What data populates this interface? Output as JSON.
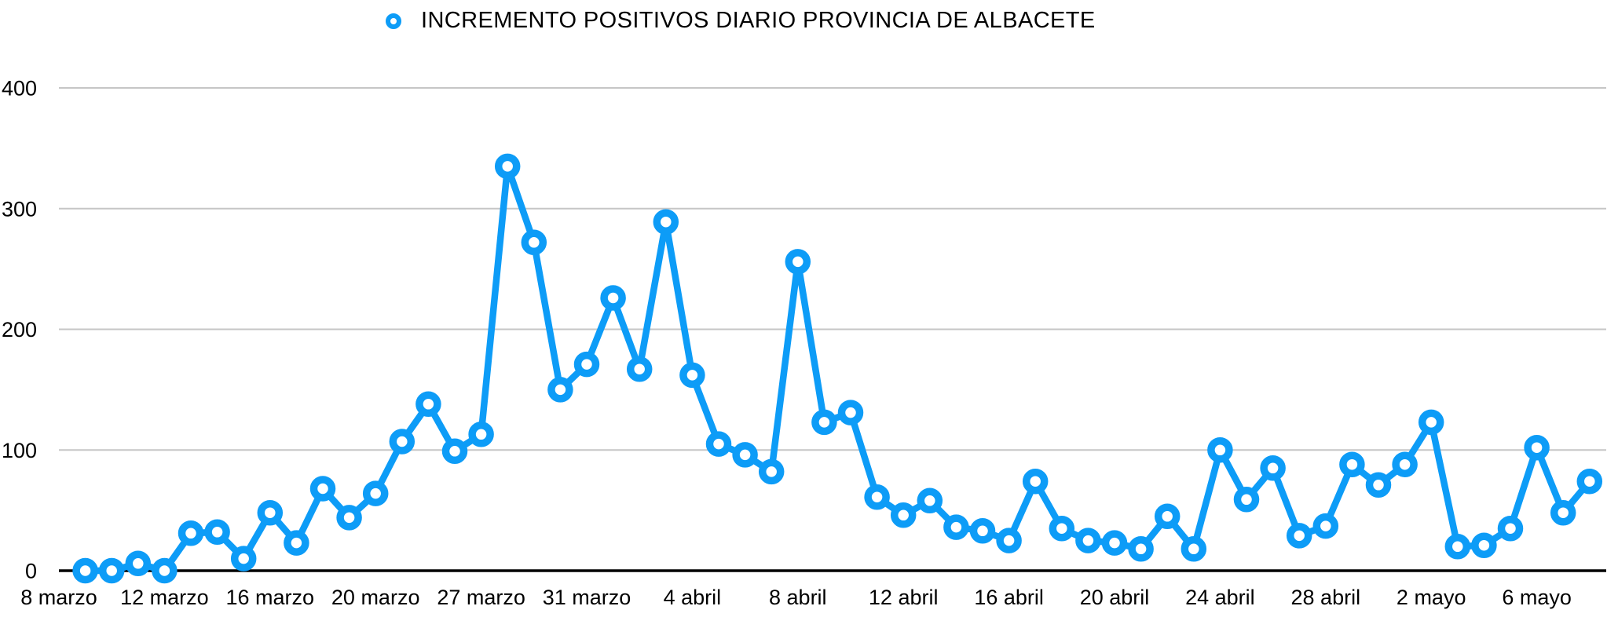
{
  "chart_data": {
    "type": "line",
    "legend": {
      "position": "top",
      "label": "INCREMENTO POSITIVOS DIARIO PROVINCIA DE ALBACETE"
    },
    "series": [
      {
        "name": "INCREMENTO POSITIVOS DIARIO PROVINCIA DE ALBACETE",
        "marker": "donut-circle",
        "start_slot": 1,
        "values": [
          0,
          0,
          6,
          0,
          31,
          32,
          10,
          48,
          23,
          68,
          44,
          64,
          107,
          138,
          99,
          113,
          335,
          272,
          150,
          171,
          226,
          167,
          289,
          162,
          105,
          96,
          82,
          256,
          123,
          131,
          61,
          46,
          58,
          36,
          33,
          25,
          74,
          35,
          25,
          23,
          18,
          45,
          18,
          100,
          59,
          85,
          29,
          37,
          88,
          71,
          88,
          123,
          20,
          21,
          35,
          102,
          48,
          74
        ]
      }
    ],
    "x_ticks": [
      {
        "label": "8 marzo",
        "slot": 0
      },
      {
        "label": "12 marzo",
        "slot": 4
      },
      {
        "label": "16 marzo",
        "slot": 8
      },
      {
        "label": "20 marzo",
        "slot": 12
      },
      {
        "label": "27 marzo",
        "slot": 16
      },
      {
        "label": "31 marzo",
        "slot": 20
      },
      {
        "label": "4 abril",
        "slot": 24
      },
      {
        "label": "8 abril",
        "slot": 28
      },
      {
        "label": "12 abril",
        "slot": 32
      },
      {
        "label": "16 abril",
        "slot": 36
      },
      {
        "label": "20 abril",
        "slot": 40
      },
      {
        "label": "24 abril",
        "slot": 44
      },
      {
        "label": "28 abril",
        "slot": 48
      },
      {
        "label": "2 mayo",
        "slot": 52
      },
      {
        "label": "6 mayo",
        "slot": 56
      }
    ],
    "yticks": [
      0,
      100,
      200,
      300,
      400
    ],
    "ylim": [
      0,
      400
    ],
    "grid": {
      "horizontal": true,
      "vertical": false
    },
    "colors": {
      "line": "#0D9CF7",
      "marker_fill": "#ffffff",
      "grid": "#c6c6c6",
      "axis": "#000000",
      "text": "#000000"
    }
  }
}
